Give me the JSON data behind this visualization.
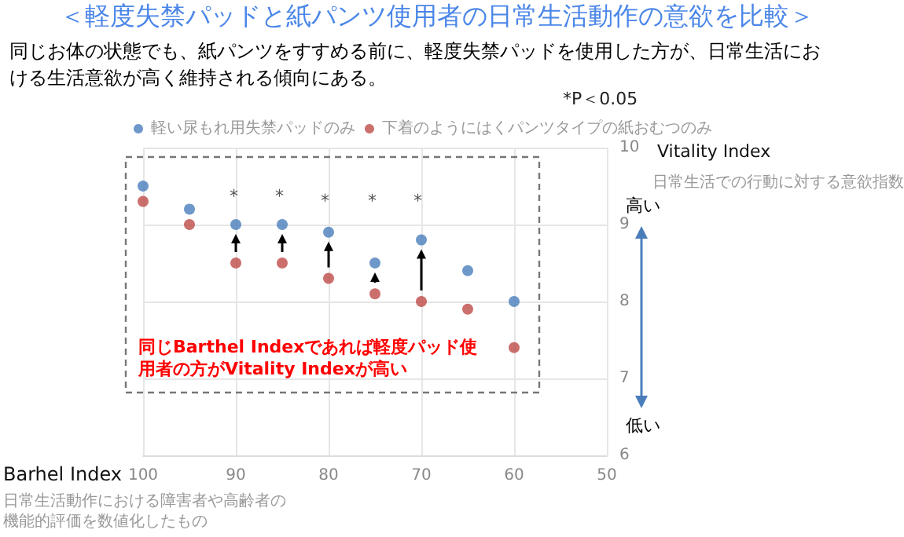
{
  "chart_data": {
    "type": "scatter",
    "title": "＜軽度失禁パッドと紙パンツ使用者の日常生活動作の意欲を比較＞",
    "subtitle": "同じお体の状態でも、紙パンツをすすめる前に、軽度失禁パッドを使用した方が、日常生活における生活意欲が高く維持される傾向にある。",
    "xlabel": "Barhel Index",
    "ylabel": "Vitality Index",
    "x": [
      100,
      95,
      90,
      85,
      80,
      75,
      70,
      65,
      60
    ],
    "series": [
      {
        "name": "軽い尿もれ用失禁パッドのみ",
        "color": "#4a7ebb",
        "values": [
          9.5,
          9.2,
          9.0,
          9.0,
          8.9,
          8.5,
          8.8,
          8.4,
          8.0
        ]
      },
      {
        "name": "下着のようにはくパンツタイプの紙おむつのみ",
        "color": "#be4b48",
        "values": [
          9.3,
          9.0,
          8.5,
          8.5,
          8.3,
          8.1,
          8.0,
          7.9,
          7.4
        ]
      }
    ],
    "xlim": [
      100,
      50
    ],
    "xticks": [
      100,
      90,
      80,
      70,
      60,
      50
    ],
    "ylim": [
      6,
      10
    ],
    "yticks": [
      6,
      7,
      8,
      9,
      10
    ],
    "grid": true,
    "legend": "top",
    "marker": "circle",
    "annotations": [
      "*P＜0.05",
      "日常生活での行動に対する意欲指数",
      "高い",
      "低い",
      "日常生活動作における障害者や高齢者の機能的評価を数値化したもの",
      "同じBarthel Indexであれば軽度パッド使用者の方がVitality Indexが高い",
      "*",
      "*",
      "*",
      "*",
      "*"
    ]
  }
}
